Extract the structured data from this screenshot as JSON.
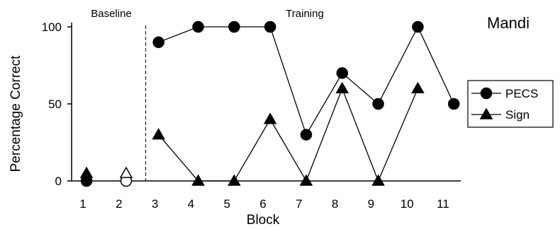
{
  "chart_data": {
    "type": "line",
    "title": "Mandi",
    "xlabel": "Block",
    "ylabel": "Percentage Correct",
    "ylim": [
      0,
      100
    ],
    "xlim": [
      1,
      11
    ],
    "y_ticks": [
      "0",
      "50",
      "100"
    ],
    "x_ticks": [
      "1",
      "2",
      "3",
      "4",
      "5",
      "6",
      "7",
      "8",
      "9",
      "10",
      "11"
    ],
    "phases": [
      {
        "label": "Baseline"
      },
      {
        "label": "Training"
      }
    ],
    "phase_change_at": 3,
    "grid": false,
    "legend": "right",
    "baseline_points": [
      {
        "x": 1.1,
        "y": 0,
        "shape": "filled-circle"
      },
      {
        "x": 1.1,
        "y": 5,
        "shape": "filled-triangle"
      },
      {
        "x": 2.2,
        "y": 0,
        "shape": "open-circle"
      },
      {
        "x": 2.2,
        "y": 5,
        "shape": "open-triangle"
      }
    ],
    "series": [
      {
        "name": "PECS",
        "marker": "circle",
        "x": [
          3.1,
          4.2,
          5.2,
          6.2,
          7.2,
          8.2,
          9.2,
          10.3,
          11.3
        ],
        "values": [
          90,
          100,
          100,
          100,
          30,
          70,
          50,
          100,
          50
        ]
      },
      {
        "name": "Sign",
        "marker": "triangle",
        "x": [
          3.1,
          4.2,
          5.2,
          6.2,
          7.2,
          8.2,
          9.2,
          10.3
        ],
        "values": [
          30,
          0,
          0,
          40,
          0,
          60,
          0,
          60
        ]
      }
    ]
  }
}
